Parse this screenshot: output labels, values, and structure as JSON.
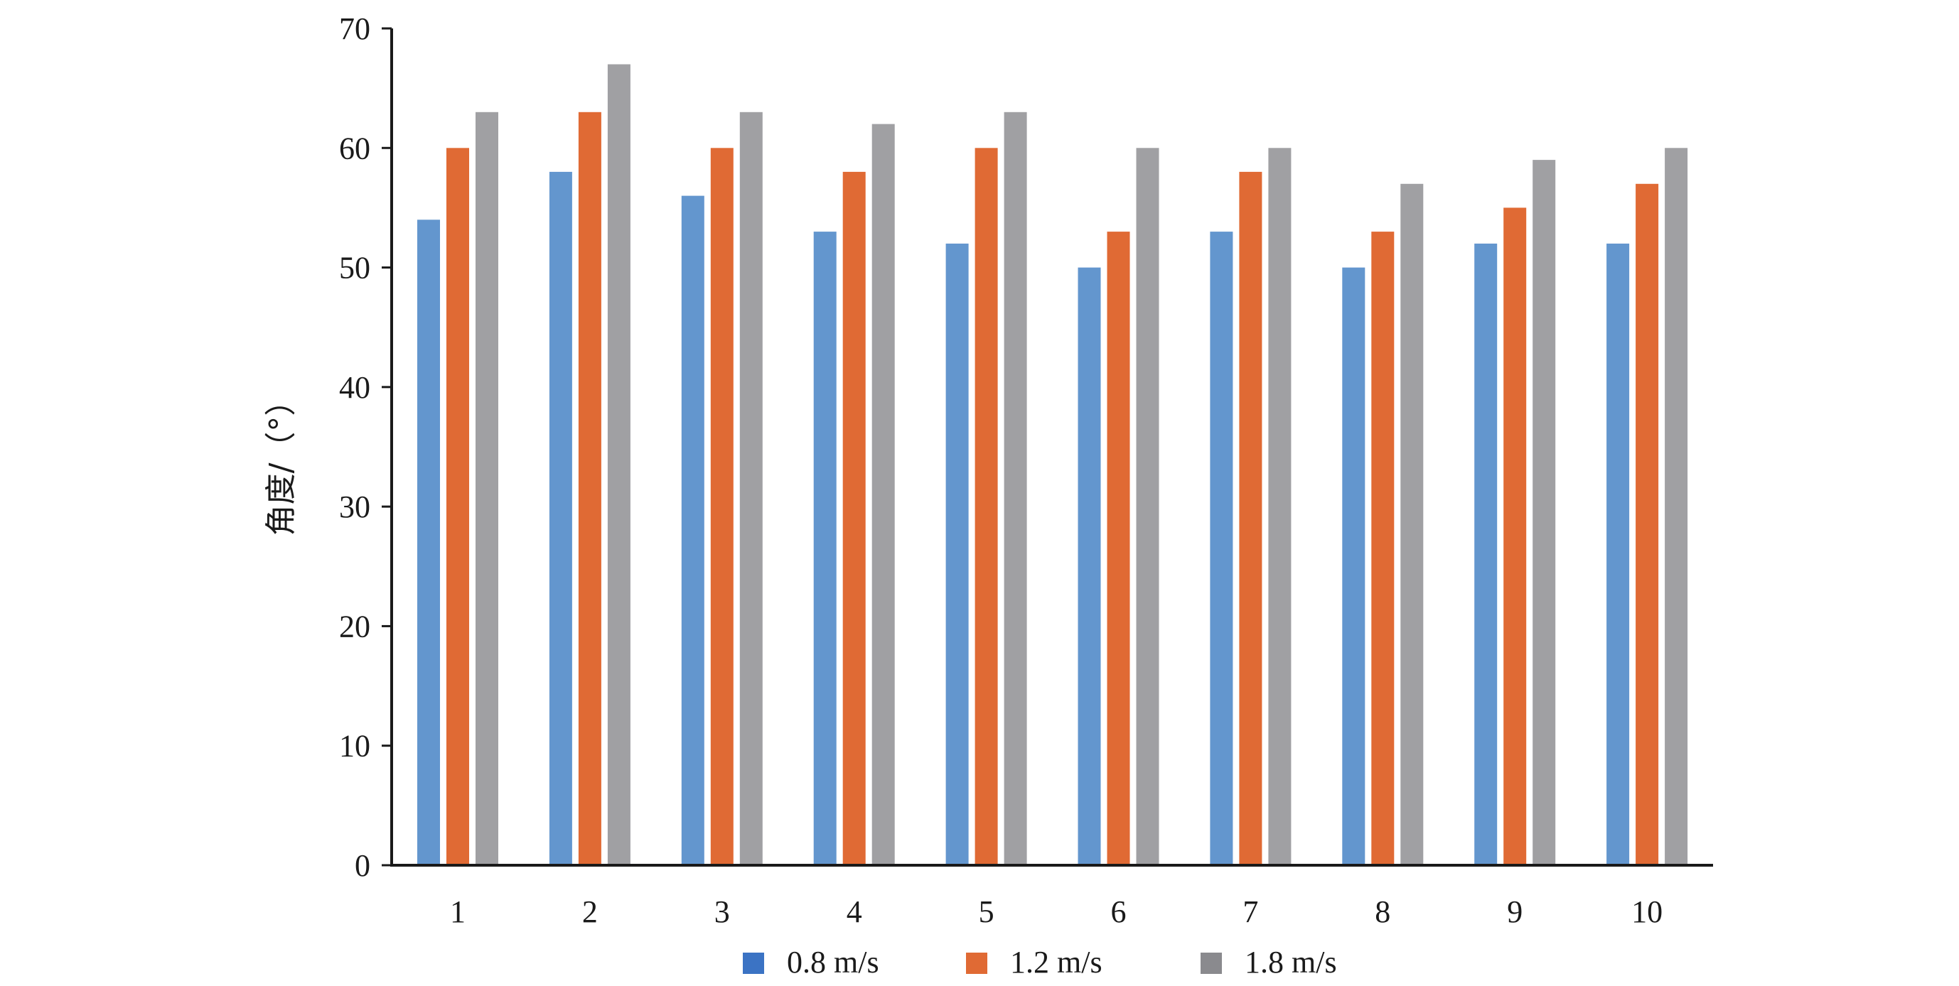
{
  "chart_data": {
    "type": "bar",
    "title": "",
    "xlabel": "",
    "ylabel": "角度/（°）",
    "ylim": [
      0,
      70
    ],
    "yticks": [
      0,
      10,
      20,
      30,
      40,
      50,
      60,
      70
    ],
    "categories": [
      "1",
      "2",
      "3",
      "4",
      "5",
      "6",
      "7",
      "8",
      "9",
      "10"
    ],
    "series": [
      {
        "name": "0.8 m/s",
        "color": "#6396CE",
        "values": [
          54,
          58,
          56,
          53,
          52,
          50,
          53,
          50,
          52,
          52
        ]
      },
      {
        "name": "1.2 m/s",
        "color": "#E06A34",
        "values": [
          60,
          63,
          60,
          58,
          60,
          53,
          58,
          53,
          55,
          57
        ]
      },
      {
        "name": "1.8 m/s",
        "color": "#A0A0A3",
        "values": [
          63,
          67,
          63,
          62,
          63,
          60,
          60,
          57,
          59,
          60
        ]
      }
    ],
    "legend_position": "bottom",
    "grid": false
  }
}
